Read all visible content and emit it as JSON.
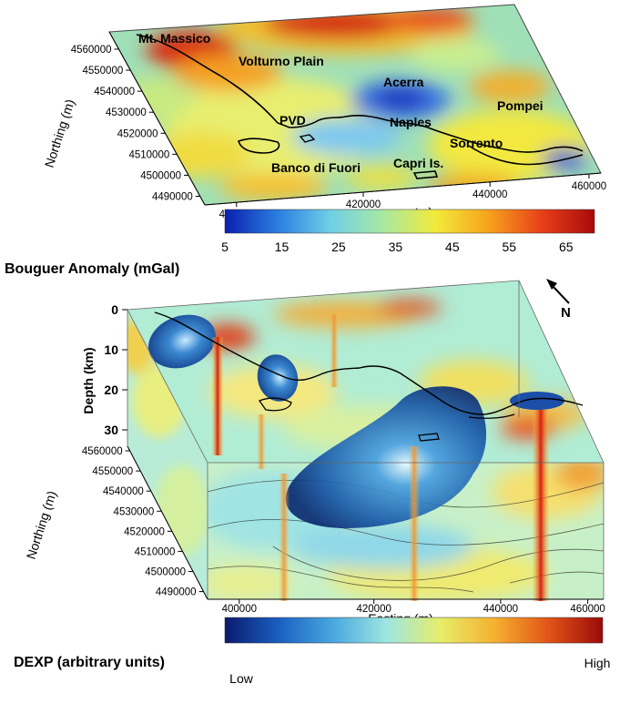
{
  "top_map": {
    "places": [
      {
        "name": "Mt. Massico"
      },
      {
        "name": "Volturno Plain"
      },
      {
        "name": "Acerra"
      },
      {
        "name": "Pompei"
      },
      {
        "name": "PVD"
      },
      {
        "name": "Naples"
      },
      {
        "name": "Sorrento"
      },
      {
        "name": "Banco di Fuori"
      },
      {
        "name": "Capri Is."
      }
    ],
    "northing_ticks": [
      "4560000",
      "4550000",
      "4540000",
      "4530000",
      "4520000",
      "4510000",
      "4500000",
      "4490000"
    ],
    "easting_ticks": [
      "400000",
      "420000",
      "440000",
      "460000"
    ],
    "ylabel": "Northing (m)",
    "xlabel": "Easting (m)",
    "colorbar": {
      "title": "Bouguer Anomaly (mGal)",
      "ticks": [
        "5",
        "15",
        "25",
        "35",
        "45",
        "55",
        "65"
      ],
      "colors": [
        "#0a1fb0",
        "#2a7ee0",
        "#6fd0e6",
        "#a8e8a0",
        "#f2ea3a",
        "#f7a21c",
        "#e8401a",
        "#a80a0a"
      ]
    }
  },
  "bottom_block": {
    "depth_label": "Depth (km)",
    "depth_ticks": [
      "0",
      "10",
      "20",
      "30"
    ],
    "northing_ticks": [
      "4560000",
      "4550000",
      "4540000",
      "4530000",
      "4520000",
      "4510000",
      "4500000",
      "4490000"
    ],
    "easting_ticks": [
      "400000",
      "420000",
      "440000",
      "460000"
    ],
    "ylabel": "Northing (m)",
    "xlabel": "Easting (m)",
    "north_label": "N",
    "colorbar": {
      "title": "DEXP (arbitrary units)",
      "low_label": "Low",
      "high_label": "High",
      "colors": [
        "#0a1a6e",
        "#1a5fc0",
        "#49a8e0",
        "#9ee6e0",
        "#e6ee6a",
        "#f5b030",
        "#e25418",
        "#9a0a0a"
      ]
    }
  }
}
